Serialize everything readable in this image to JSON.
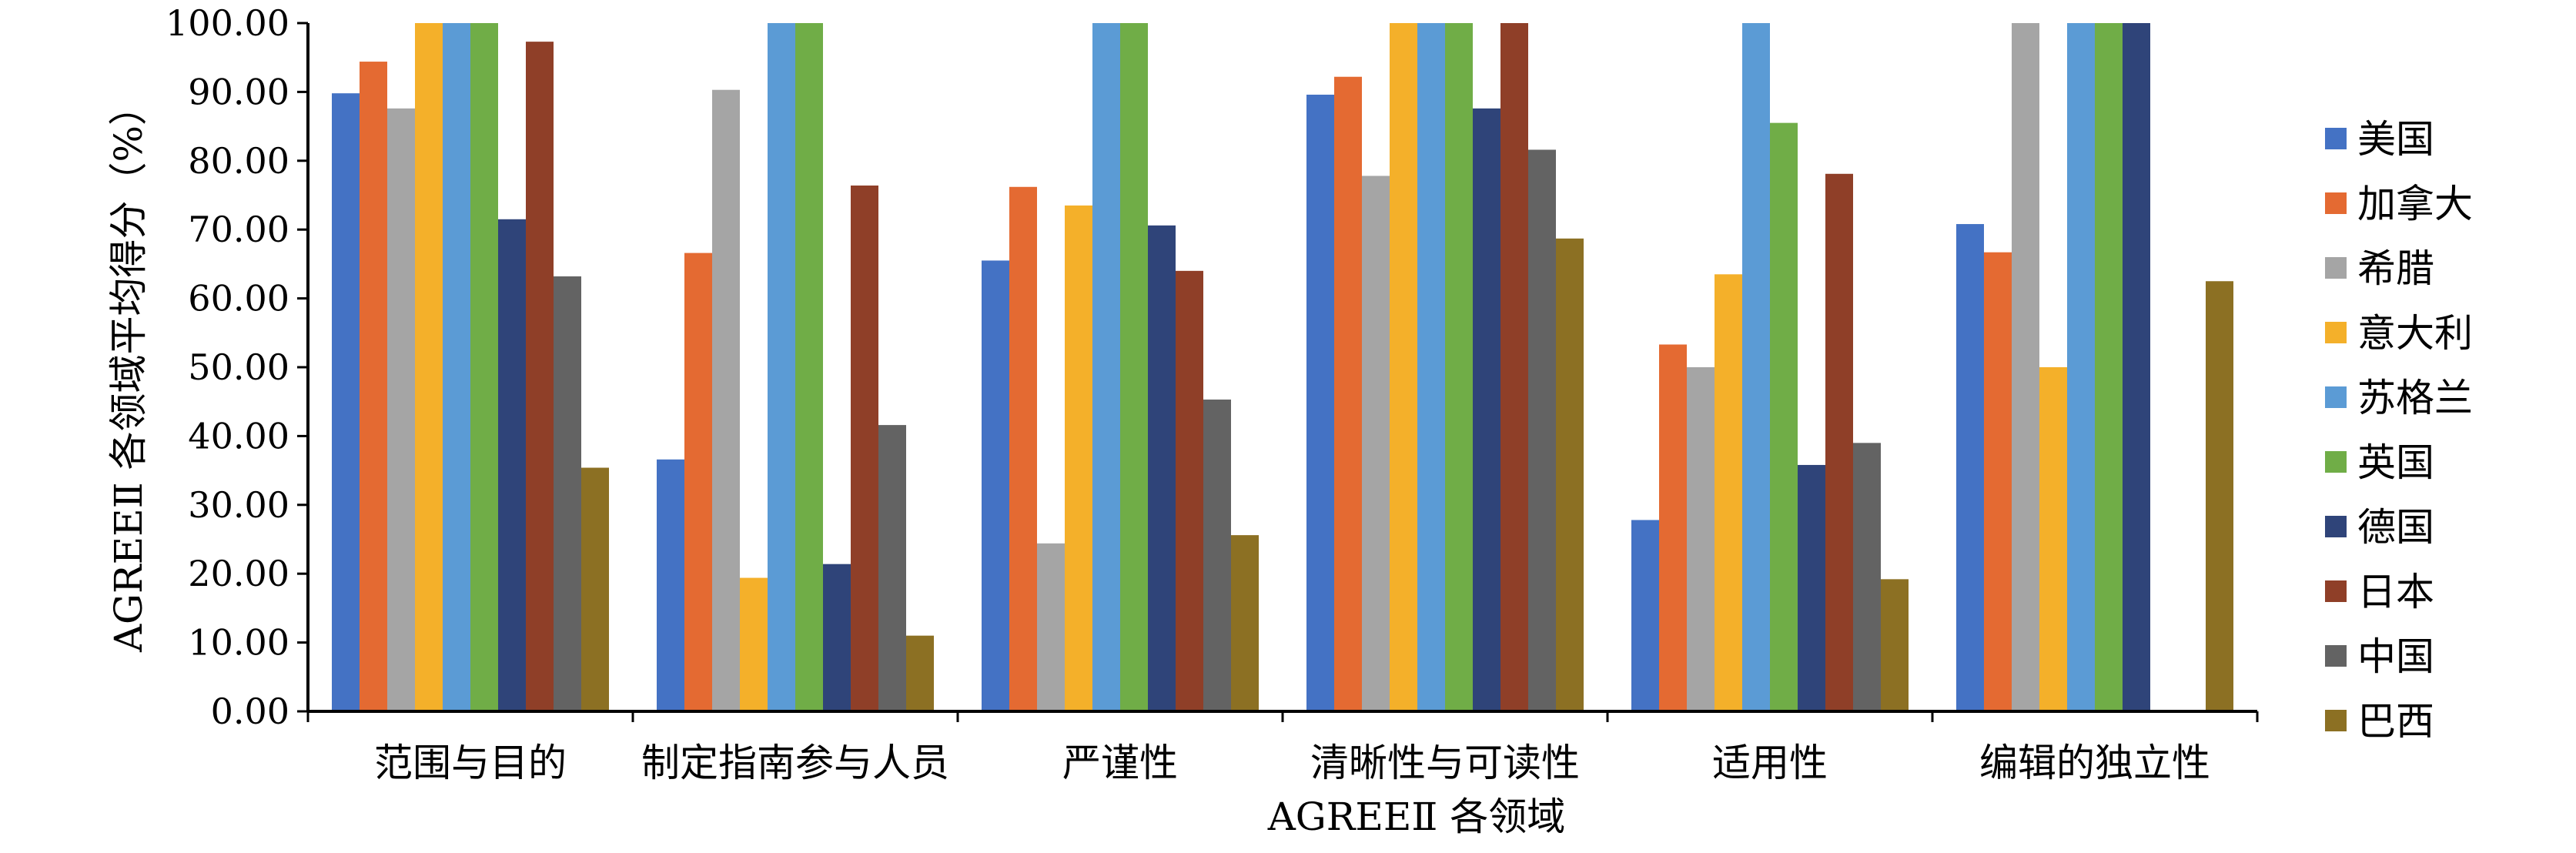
{
  "chart_data": {
    "type": "bar",
    "xlabel": "AGREEⅡ 各领域",
    "ylabel": "AGREEⅡ 各领域平均得分（%）",
    "ylim": [
      0,
      100
    ],
    "yticks": [
      "0.00",
      "10.00",
      "20.00",
      "30.00",
      "40.00",
      "50.00",
      "60.00",
      "70.00",
      "80.00",
      "90.00",
      "100.00"
    ],
    "grid": false,
    "legend_position": "right",
    "categories": [
      "范围与目的",
      "制定指南参与人员",
      "严谨性",
      "清晰性与可读性",
      "适用性",
      "编辑的独立性"
    ],
    "series": [
      {
        "name": "美国",
        "color": "#4472C4",
        "values": [
          89.8,
          36.6,
          65.5,
          89.6,
          27.8,
          70.8
        ]
      },
      {
        "name": "加拿大",
        "color": "#E46A32",
        "values": [
          94.4,
          66.6,
          76.2,
          92.2,
          53.3,
          66.7
        ]
      },
      {
        "name": "希腊",
        "color": "#A5A5A5",
        "values": [
          87.6,
          90.3,
          24.4,
          77.8,
          50.0,
          100.0
        ]
      },
      {
        "name": "意大利",
        "color": "#F4B02A",
        "values": [
          100.0,
          19.4,
          73.5,
          100.0,
          63.5,
          50.0
        ]
      },
      {
        "name": "苏格兰",
        "color": "#5B9BD5",
        "values": [
          100.0,
          100.0,
          100.0,
          100.0,
          100.0,
          100.0
        ]
      },
      {
        "name": "英国",
        "color": "#70AD47",
        "values": [
          100.0,
          100.0,
          100.0,
          100.0,
          85.5,
          100.0
        ]
      },
      {
        "name": "德国",
        "color": "#2F4479",
        "values": [
          71.5,
          21.4,
          70.6,
          87.6,
          35.8,
          100.0
        ]
      },
      {
        "name": "日本",
        "color": "#8F3F28",
        "values": [
          97.3,
          76.4,
          64.0,
          100.0,
          78.1,
          0
        ]
      },
      {
        "name": "中国",
        "color": "#636363",
        "values": [
          63.2,
          41.6,
          45.3,
          81.6,
          39.0,
          0
        ]
      },
      {
        "name": "巴西",
        "color": "#8C7023",
        "values": [
          35.4,
          11.0,
          25.6,
          68.7,
          19.2,
          62.5
        ]
      }
    ]
  }
}
